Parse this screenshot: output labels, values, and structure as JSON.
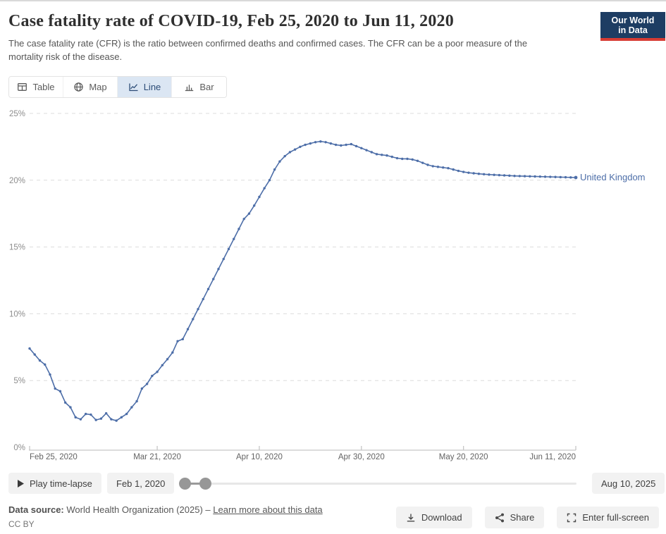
{
  "header": {
    "title": "Case fatality rate of COVID-19, Feb 25, 2020 to Jun 11, 2020",
    "subtitle": "The case fatality rate (CFR) is the ratio between confirmed deaths and confirmed cases. The CFR can be a poor measure of the mortality risk of the disease.",
    "logo": {
      "line1": "Our World",
      "line2": "in Data"
    }
  },
  "tabs": {
    "items": [
      {
        "label": "Table",
        "active": false
      },
      {
        "label": "Map",
        "active": false
      },
      {
        "label": "Line",
        "active": true
      },
      {
        "label": "Bar",
        "active": false
      }
    ]
  },
  "chart_data": {
    "type": "line",
    "title": "Case fatality rate of COVID-19, Feb 25, 2020 to Jun 11, 2020",
    "y_unit": "%",
    "ylim": [
      0,
      25
    ],
    "y_ticks": [
      0,
      5,
      10,
      15,
      20,
      25
    ],
    "grid": "dashed",
    "x_days": 107,
    "x_ticks": [
      {
        "label": "Feb 25, 2020",
        "day": 0,
        "align": "start"
      },
      {
        "label": "Mar 21, 2020",
        "day": 25,
        "align": "middle"
      },
      {
        "label": "Apr 10, 2020",
        "day": 45,
        "align": "middle"
      },
      {
        "label": "Apr 30, 2020",
        "day": 65,
        "align": "middle"
      },
      {
        "label": "May 20, 2020",
        "day": 85,
        "align": "middle"
      },
      {
        "label": "Jun 11, 2020",
        "day": 107,
        "align": "end"
      }
    ],
    "series": [
      {
        "name": "United Kingdom",
        "color": "#4d6ea8",
        "start_date": "Feb 25, 2020",
        "end_date": "Jun 11, 2020",
        "values": [
          7.4,
          6.95,
          6.5,
          6.2,
          5.45,
          4.4,
          4.2,
          3.35,
          3.0,
          2.25,
          2.1,
          2.5,
          2.45,
          2.05,
          2.15,
          2.55,
          2.1,
          2.0,
          2.25,
          2.5,
          3.0,
          3.45,
          4.4,
          4.75,
          5.35,
          5.65,
          6.15,
          6.6,
          7.1,
          7.95,
          8.1,
          8.85,
          9.6,
          10.35,
          11.1,
          11.85,
          12.6,
          13.35,
          14.1,
          14.85,
          15.6,
          16.35,
          17.1,
          17.5,
          18.1,
          18.75,
          19.4,
          20.0,
          20.8,
          21.4,
          21.8,
          22.1,
          22.3,
          22.5,
          22.65,
          22.75,
          22.85,
          22.9,
          22.85,
          22.75,
          22.65,
          22.6,
          22.65,
          22.7,
          22.55,
          22.4,
          22.25,
          22.1,
          21.95,
          21.9,
          21.85,
          21.75,
          21.65,
          21.6,
          21.6,
          21.55,
          21.45,
          21.3,
          21.15,
          21.05,
          21.0,
          20.95,
          20.9,
          20.8,
          20.7,
          20.62,
          20.56,
          20.52,
          20.48,
          20.45,
          20.42,
          20.4,
          20.38,
          20.36,
          20.34,
          20.32,
          20.31,
          20.3,
          20.29,
          20.28,
          20.27,
          20.26,
          20.25,
          20.24,
          20.23,
          20.22,
          20.21,
          20.2
        ]
      }
    ]
  },
  "timeline": {
    "play_label": "Play time-lapse",
    "start_label": "Feb 1, 2020",
    "end_label": "Aug 10, 2025"
  },
  "footer": {
    "source_prefix": "Data source:",
    "source_text": "World Health Organization (2025)",
    "separator": "–",
    "link_text": "Learn more about this data",
    "license": "CC BY",
    "buttons": [
      {
        "label": "Download"
      },
      {
        "label": "Share"
      },
      {
        "label": "Enter full-screen"
      }
    ]
  }
}
